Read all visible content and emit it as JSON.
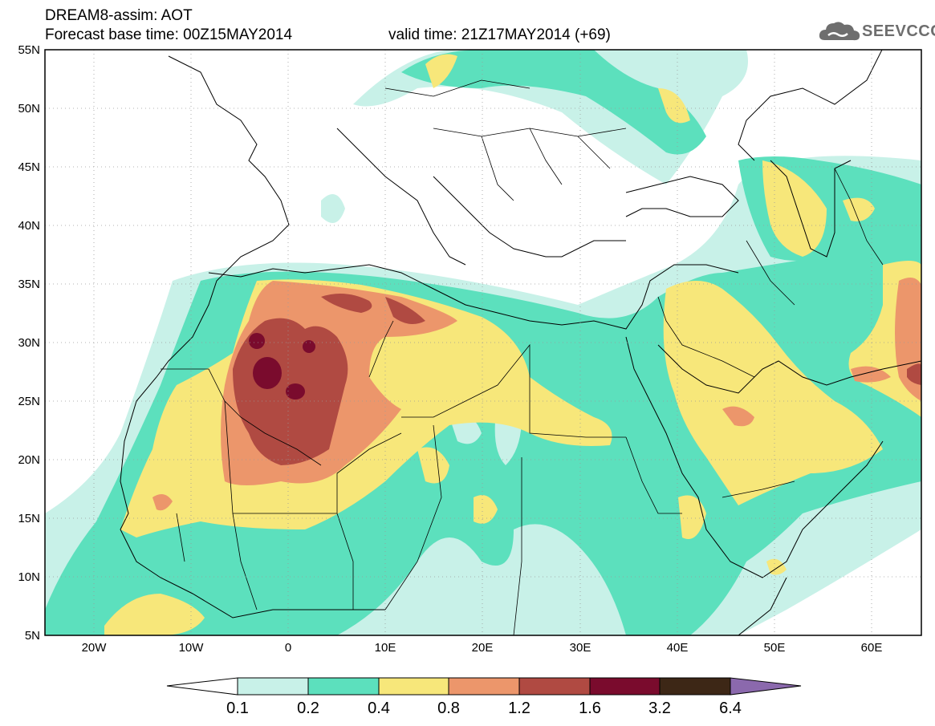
{
  "header": {
    "line1": "DREAM8-assim: AOT",
    "line2_base": "Forecast base time: 00Z15MAY2014",
    "line2_valid": "valid time: 21Z17MAY2014 (+69)"
  },
  "logo": {
    "text": "SEEVCCC",
    "icon": "cloud-icon"
  },
  "axes": {
    "lat_labels": [
      "55N",
      "50N",
      "45N",
      "40N",
      "35N",
      "30N",
      "25N",
      "20N",
      "15N",
      "10N",
      "5N"
    ],
    "lon_labels": [
      "20W",
      "10W",
      "0",
      "10E",
      "20E",
      "30E",
      "40E",
      "50E",
      "60E"
    ]
  },
  "colorbar": {
    "labels": [
      "0.1",
      "0.2",
      "0.4",
      "0.8",
      "1.2",
      "1.6",
      "3.2",
      "6.4"
    ],
    "colors": [
      "#ffffff",
      "#c8f1e8",
      "#5ce0bd",
      "#f7e77a",
      "#ec966b",
      "#b04a42",
      "#7a0b2d",
      "#3d2716",
      "#8b69ad"
    ]
  }
}
